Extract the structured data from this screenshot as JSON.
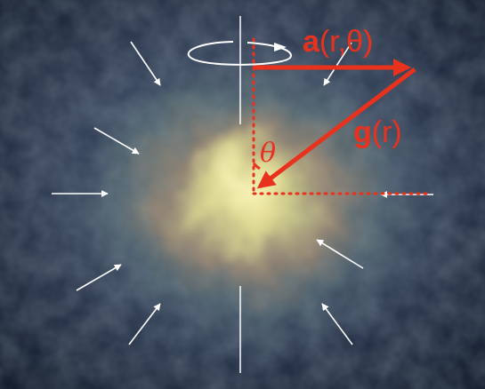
{
  "labels": {
    "vector_a_bold": "a",
    "vector_a_args": "(r,θ)",
    "vector_g_bold": "g",
    "vector_g_args": "(r)",
    "angle": "θ"
  },
  "colors": {
    "background_dark": "#0d1728",
    "cloud_core": "#efe9a8",
    "arrow_red": "#e8321e",
    "infall_arrows": "#ffffff"
  },
  "icons": {
    "rotation": "rotation-arrow-icon",
    "infall": "infall-arrow-icon"
  }
}
